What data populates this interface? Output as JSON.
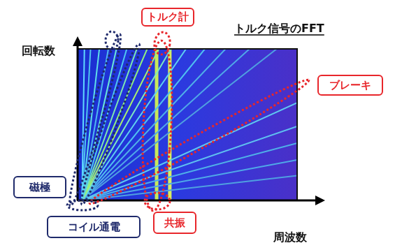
{
  "chart_data": {
    "type": "line",
    "title": "トルク信号のFFT",
    "x_label": "周波数",
    "y_label": "回転数",
    "xlim": [
      0,
      100
    ],
    "ylim": [
      0,
      100
    ],
    "tick_labels": false,
    "grid": false,
    "legend": false,
    "series": [
      {
        "color": "#5fd8ff",
        "x": [
          2,
          3.1
        ],
        "values": [
          0,
          100
        ]
      },
      {
        "color": "#4fc4f0",
        "x": [
          2,
          5.9
        ],
        "values": [
          0,
          100
        ]
      },
      {
        "color": "#5fe0e8",
        "x": [
          2,
          9.9
        ],
        "values": [
          0,
          100
        ]
      },
      {
        "color": "#4fb8f0",
        "x": [
          2,
          14
        ],
        "values": [
          0,
          100
        ]
      },
      {
        "color": "#6ae8d8",
        "x": [
          2,
          17.7
        ],
        "values": [
          0,
          100
        ]
      },
      {
        "color": "#4fc8f0",
        "x": [
          2,
          22.4
        ],
        "values": [
          0,
          100
        ]
      },
      {
        "color": "#7ee8b0",
        "x": [
          2,
          27
        ],
        "values": [
          0,
          100
        ]
      },
      {
        "color": "#8ff080",
        "x": [
          2,
          31.7
        ],
        "values": [
          0,
          100
        ]
      },
      {
        "color": "#a8f070",
        "x": [
          2,
          37
        ],
        "values": [
          0,
          100
        ]
      },
      {
        "color": "#7ee8c0",
        "x": [
          2,
          42.5
        ],
        "values": [
          0,
          100
        ]
      },
      {
        "color": "#5fd0f0",
        "x": [
          2,
          49.4
        ],
        "values": [
          0,
          100
        ]
      },
      {
        "color": "#4fc0f0",
        "x": [
          2,
          58
        ],
        "values": [
          0,
          100
        ]
      },
      {
        "color": "#4fb0e8",
        "x": [
          2,
          67.4
        ],
        "values": [
          0,
          100
        ]
      },
      {
        "color": "#4fa8e8",
        "x": [
          2,
          78.3
        ],
        "values": [
          0,
          100
        ]
      },
      {
        "color": "#4fa0e0",
        "x": [
          2,
          90.7
        ],
        "values": [
          0,
          100
        ]
      },
      {
        "color": "#5fc8f0",
        "x": [
          2,
          100
        ],
        "values": [
          0,
          64.4
        ]
      },
      {
        "color": "#5fc0f0",
        "x": [
          2,
          100
        ],
        "values": [
          0,
          48.9
        ]
      },
      {
        "color": "#4fb0e8",
        "x": [
          2,
          100
        ],
        "values": [
          0,
          37.8
        ]
      },
      {
        "color": "#4fa8e8",
        "x": [
          2,
          100
        ],
        "values": [
          0,
          26.7
        ]
      },
      {
        "color": "#4fa0e0",
        "x": [
          2,
          100
        ],
        "values": [
          0,
          16.4
        ]
      },
      {
        "color": "#c8e85a",
        "x": [
          36,
          36
        ],
        "values": [
          0,
          100
        ]
      },
      {
        "color": "#d8ee60",
        "x": [
          42,
          42
        ],
        "values": [
          0,
          100
        ]
      }
    ],
    "annotations": [
      {
        "text": "トルク計",
        "color": "#e8262b"
      },
      {
        "text": "ブレーキ",
        "color": "#e8262b"
      },
      {
        "text": "共振",
        "color": "#e8262b"
      },
      {
        "text": "磁極",
        "color": "#1f2a6b"
      },
      {
        "text": "コイル通電",
        "color": "#1f2a6b"
      }
    ]
  }
}
